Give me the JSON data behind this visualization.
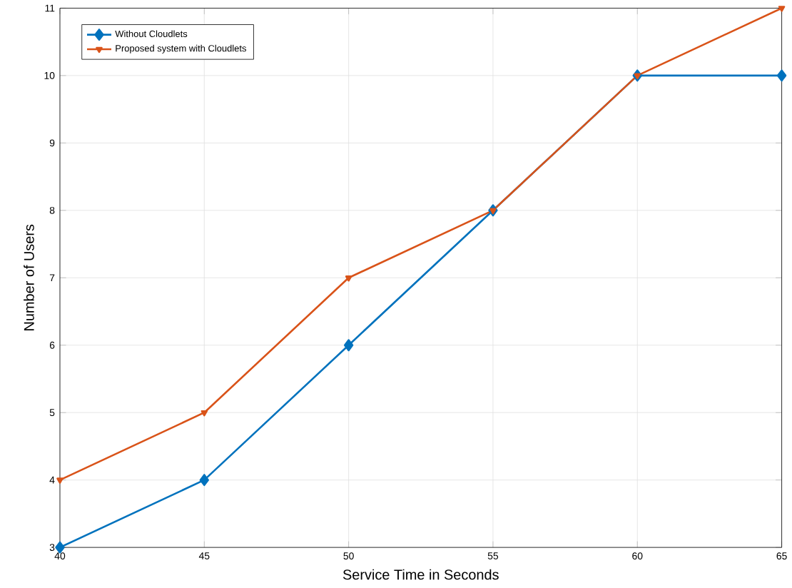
{
  "chart_data": {
    "type": "line",
    "xlabel": "Service Time in Seconds",
    "ylabel": "Number of Users",
    "x": [
      40,
      45,
      50,
      55,
      60,
      65
    ],
    "series": [
      {
        "name": "Without Cloudlets",
        "color": "#0072bd",
        "values": [
          3,
          4,
          6,
          8,
          10,
          10
        ],
        "marker": "diamond"
      },
      {
        "name": "Proposed system with Cloudlets",
        "color": "#d95319",
        "values": [
          4,
          5,
          7,
          8,
          10,
          11
        ],
        "marker": "triangle"
      }
    ],
    "xlim": [
      40,
      65
    ],
    "xticks": [
      40,
      45,
      50,
      55,
      60,
      65
    ],
    "ylim": [
      3,
      11
    ],
    "yticks": [
      3,
      4,
      5,
      6,
      7,
      8,
      9,
      10,
      11
    ],
    "grid": true,
    "legend": "top left",
    "line_style": "solid"
  }
}
